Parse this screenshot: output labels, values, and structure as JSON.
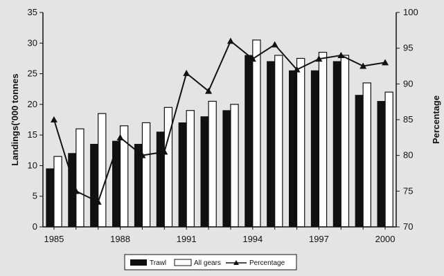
{
  "chart_data": {
    "type": "bar",
    "x": [
      1985,
      1986,
      1987,
      1988,
      1989,
      1990,
      1991,
      1992,
      1993,
      1994,
      1995,
      1996,
      1997,
      1998,
      1999,
      2000
    ],
    "x_tick_labels": [
      "1985",
      "1988",
      "1991",
      "1994",
      "1997",
      "2000"
    ],
    "x_tick_years": [
      1985,
      1988,
      1991,
      1994,
      1997,
      2000
    ],
    "series": [
      {
        "name": "Trawl",
        "kind": "bar",
        "axis": "left",
        "color": "#111111",
        "values": [
          9.5,
          12.0,
          13.5,
          14.0,
          13.5,
          15.5,
          17.0,
          18.0,
          19.0,
          28.0,
          27.0,
          25.5,
          25.5,
          27.0,
          21.5,
          20.5
        ]
      },
      {
        "name": "All gears",
        "kind": "bar",
        "axis": "left",
        "color": "#ffffff",
        "values": [
          11.5,
          16.0,
          18.5,
          16.5,
          17.0,
          19.5,
          19.0,
          20.5,
          20.0,
          30.5,
          28.0,
          27.5,
          28.5,
          28.0,
          23.5,
          22.0
        ]
      },
      {
        "name": "Percentage",
        "kind": "line",
        "axis": "right",
        "color": "#111111",
        "values": [
          85,
          75,
          73.5,
          82.5,
          80,
          80.5,
          91.5,
          89,
          96,
          93.5,
          95.5,
          92,
          93.5,
          94,
          92.5,
          93
        ]
      }
    ],
    "ylabel": "Landings('000 tonnes",
    "y2label": "Percentage",
    "ylim": [
      0,
      35
    ],
    "y_ticks": [
      0,
      5,
      10,
      15,
      20,
      25,
      30,
      35
    ],
    "y2lim": [
      70,
      100
    ],
    "y2_ticks": [
      70,
      75,
      80,
      85,
      90,
      95,
      100
    ],
    "grid": false,
    "legend_placement": "bottom-center"
  }
}
